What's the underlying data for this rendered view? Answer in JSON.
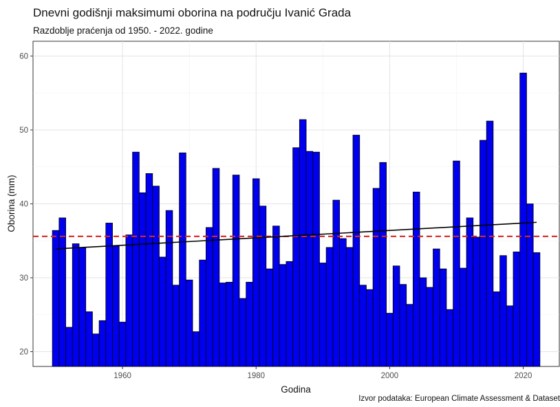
{
  "chart_data": {
    "type": "bar",
    "title": "Dnevni godišnji maksimumi oborina na području Ivanić Grada",
    "subtitle": "Razdoblje praćenja od 1950. - 2022. godine",
    "caption": "Izvor podataka: European Climate Assessment & Dataset",
    "xlabel": "Godina",
    "ylabel": "Oborina (mm)",
    "xlim": [
      1946.6,
      2025.4
    ],
    "ylim": [
      18,
      62
    ],
    "x_ticks": [
      1960,
      1980,
      2000,
      2020
    ],
    "y_ticks": [
      20,
      30,
      40,
      50,
      60
    ],
    "grid": true,
    "x": [
      1950,
      1951,
      1952,
      1953,
      1954,
      1955,
      1956,
      1957,
      1958,
      1959,
      1960,
      1961,
      1962,
      1963,
      1964,
      1965,
      1966,
      1967,
      1968,
      1969,
      1970,
      1971,
      1972,
      1973,
      1974,
      1975,
      1976,
      1977,
      1978,
      1979,
      1980,
      1981,
      1982,
      1983,
      1984,
      1985,
      1986,
      1987,
      1988,
      1989,
      1990,
      1991,
      1992,
      1993,
      1994,
      1995,
      1996,
      1997,
      1998,
      1999,
      2000,
      2001,
      2002,
      2003,
      2004,
      2005,
      2006,
      2007,
      2008,
      2009,
      2010,
      2011,
      2012,
      2013,
      2014,
      2015,
      2016,
      2017,
      2018,
      2019,
      2020,
      2021,
      2022
    ],
    "values": [
      36.4,
      38.1,
      23.3,
      34.6,
      34.1,
      25.4,
      22.4,
      24.2,
      37.4,
      34.3,
      24.0,
      35.8,
      47.0,
      41.5,
      44.1,
      42.4,
      32.8,
      39.1,
      29.0,
      46.9,
      29.7,
      22.7,
      32.4,
      36.8,
      44.8,
      29.3,
      29.4,
      43.9,
      27.2,
      29.4,
      43.4,
      39.7,
      31.2,
      37.0,
      31.8,
      32.2,
      47.6,
      51.4,
      47.1,
      47.0,
      32.0,
      34.1,
      40.5,
      35.3,
      34.1,
      49.3,
      29.0,
      28.4,
      42.1,
      45.6,
      25.2,
      31.6,
      29.1,
      26.4,
      41.6,
      30.0,
      28.7,
      33.9,
      31.2,
      25.7,
      45.8,
      31.3,
      38.1,
      35.5,
      48.6,
      51.2,
      28.1,
      33.0,
      26.2,
      33.5,
      57.7,
      40.0,
      33.4
    ],
    "bar_color": "#0000ee",
    "bar_edge_color": "#000000",
    "mean_line": {
      "value": 35.6,
      "color": "#d62728",
      "style": "dashed"
    },
    "trend_line": {
      "x": [
        1950,
        2022
      ],
      "y": [
        33.9,
        37.5
      ],
      "color": "#000000"
    }
  }
}
